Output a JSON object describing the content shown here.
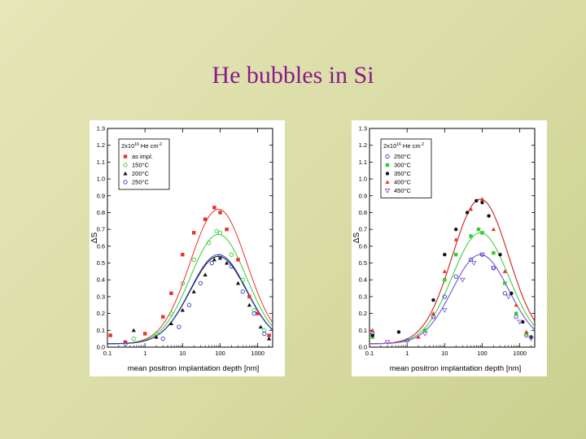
{
  "slide": {
    "title": "He bubbles in Si"
  },
  "chart_data": [
    {
      "type": "scatter",
      "title": "",
      "xlabel": "mean positron implantation depth [nm]",
      "ylabel": "ΔS",
      "xscale": "log",
      "xlim": [
        0.1,
        2500
      ],
      "ylim": [
        0.0,
        1.3
      ],
      "xticks": [
        "0.1",
        "1",
        "10",
        "100",
        "1000"
      ],
      "yticks": [
        "0.0",
        "0.1",
        "0.2",
        "0.3",
        "0.4",
        "0.5",
        "0.6",
        "0.7",
        "0.8",
        "0.9",
        "1.0",
        "1.1",
        "1.2",
        "1.3"
      ],
      "legend_position": "top-left",
      "legend_header": {
        "base": "2x10",
        "exp": "16",
        "unit": " He cm",
        "unit_exp": "-2"
      },
      "colors": [
        "#e8322a",
        "#33cc33",
        "#111111",
        "#2b3fc8"
      ],
      "series": [
        {
          "name": "as impl.",
          "marker": "square",
          "peak": 0.82,
          "points": [
            [
              0.12,
              0.07
            ],
            [
              0.3,
              0.03
            ],
            [
              1.0,
              0.08
            ],
            [
              3.0,
              0.18
            ],
            [
              5.0,
              0.32
            ],
            [
              10,
              0.55
            ],
            [
              20,
              0.68
            ],
            [
              40,
              0.76
            ],
            [
              70,
              0.83
            ],
            [
              100,
              0.8
            ],
            [
              150,
              0.7
            ],
            [
              300,
              0.52
            ],
            [
              600,
              0.3
            ],
            [
              1000,
              0.2
            ],
            [
              2000,
              0.07
            ]
          ]
        },
        {
          "name": "150°C",
          "marker": "circle-open",
          "peak": 0.67,
          "points": [
            [
              0.5,
              0.05
            ],
            [
              2,
              0.08
            ],
            [
              5,
              0.2
            ],
            [
              10,
              0.38
            ],
            [
              20,
              0.52
            ],
            [
              50,
              0.62
            ],
            [
              80,
              0.69
            ],
            [
              100,
              0.68
            ],
            [
              200,
              0.55
            ],
            [
              400,
              0.4
            ],
            [
              800,
              0.22
            ],
            [
              1500,
              0.1
            ]
          ]
        },
        {
          "name": "200°C",
          "marker": "triangle",
          "peak": 0.54,
          "points": [
            [
              0.5,
              0.1
            ],
            [
              2,
              0.06
            ],
            [
              5,
              0.14
            ],
            [
              10,
              0.22
            ],
            [
              20,
              0.33
            ],
            [
              40,
              0.43
            ],
            [
              70,
              0.52
            ],
            [
              100,
              0.53
            ],
            [
              150,
              0.5
            ],
            [
              300,
              0.38
            ],
            [
              600,
              0.25
            ],
            [
              1200,
              0.12
            ],
            [
              2000,
              0.05
            ]
          ]
        },
        {
          "name": "250°C",
          "marker": "circle-open",
          "peak": 0.55,
          "points": [
            [
              0.3,
              0.02
            ],
            [
              3,
              0.05
            ],
            [
              8,
              0.12
            ],
            [
              15,
              0.25
            ],
            [
              30,
              0.38
            ],
            [
              60,
              0.5
            ],
            [
              100,
              0.54
            ],
            [
              200,
              0.48
            ],
            [
              400,
              0.33
            ],
            [
              800,
              0.2
            ],
            [
              1500,
              0.08
            ]
          ]
        }
      ]
    },
    {
      "type": "scatter",
      "title": "",
      "xlabel": "mean positron implantation depth [nm]",
      "ylabel": "ΔS",
      "xscale": "log",
      "xlim": [
        0.1,
        2500
      ],
      "ylim": [
        0.0,
        1.3
      ],
      "xticks": [
        "0.1",
        "1",
        "10",
        "100",
        "1000"
      ],
      "yticks": [
        "0.0",
        "0.1",
        "0.2",
        "0.3",
        "0.4",
        "0.5",
        "0.6",
        "0.7",
        "0.8",
        "0.9",
        "1.0",
        "1.1",
        "1.2",
        "1.3"
      ],
      "legend_position": "top-left",
      "legend_header": {
        "base": "2x10",
        "exp": "16",
        "unit": " He cm",
        "unit_exp": "-2"
      },
      "colors": [
        "#2b3fc8",
        "#33cc33",
        "#111111",
        "#e8322a",
        "#8a5cd8"
      ],
      "series": [
        {
          "name": "250°C",
          "marker": "circle-open",
          "peak": 0.55,
          "points": [
            [
              0.12,
              0.08
            ],
            [
              1,
              0.04
            ],
            [
              5,
              0.18
            ],
            [
              10,
              0.3
            ],
            [
              20,
              0.42
            ],
            [
              50,
              0.52
            ],
            [
              100,
              0.55
            ],
            [
              200,
              0.47
            ],
            [
              400,
              0.32
            ],
            [
              800,
              0.18
            ],
            [
              1500,
              0.07
            ]
          ]
        },
        {
          "name": "300°C",
          "marker": "square",
          "peak": 0.68,
          "points": [
            [
              0.12,
              0.06
            ],
            [
              3,
              0.1
            ],
            [
              10,
              0.4
            ],
            [
              20,
              0.55
            ],
            [
              50,
              0.66
            ],
            [
              80,
              0.7
            ],
            [
              100,
              0.68
            ],
            [
              200,
              0.56
            ],
            [
              400,
              0.38
            ],
            [
              800,
              0.2
            ],
            [
              1500,
              0.08
            ]
          ]
        },
        {
          "name": "350°C",
          "marker": "circle",
          "peak": 0.88,
          "points": [
            [
              0.12,
              0.07
            ],
            [
              0.6,
              0.09
            ],
            [
              5,
              0.28
            ],
            [
              10,
              0.55
            ],
            [
              20,
              0.7
            ],
            [
              40,
              0.8
            ],
            [
              70,
              0.87
            ],
            [
              100,
              0.86
            ],
            [
              150,
              0.78
            ],
            [
              300,
              0.55
            ],
            [
              600,
              0.32
            ],
            [
              1200,
              0.15
            ],
            [
              2000,
              0.06
            ]
          ]
        },
        {
          "name": "400°C",
          "marker": "triangle",
          "peak": 0.88,
          "points": [
            [
              0.12,
              0.1
            ],
            [
              2,
              0.06
            ],
            [
              5,
              0.2
            ],
            [
              10,
              0.45
            ],
            [
              20,
              0.64
            ],
            [
              50,
              0.82
            ],
            [
              100,
              0.88
            ],
            [
              200,
              0.7
            ],
            [
              400,
              0.45
            ],
            [
              800,
              0.25
            ],
            [
              1500,
              0.09
            ]
          ]
        },
        {
          "name": "450°C",
          "marker": "triangle-down",
          "peak": 0.55,
          "points": [
            [
              0.3,
              0.03
            ],
            [
              3,
              0.08
            ],
            [
              10,
              0.22
            ],
            [
              30,
              0.4
            ],
            [
              60,
              0.5
            ],
            [
              100,
              0.55
            ],
            [
              200,
              0.47
            ],
            [
              500,
              0.3
            ],
            [
              1000,
              0.15
            ],
            [
              2000,
              0.05
            ]
          ]
        }
      ]
    }
  ]
}
